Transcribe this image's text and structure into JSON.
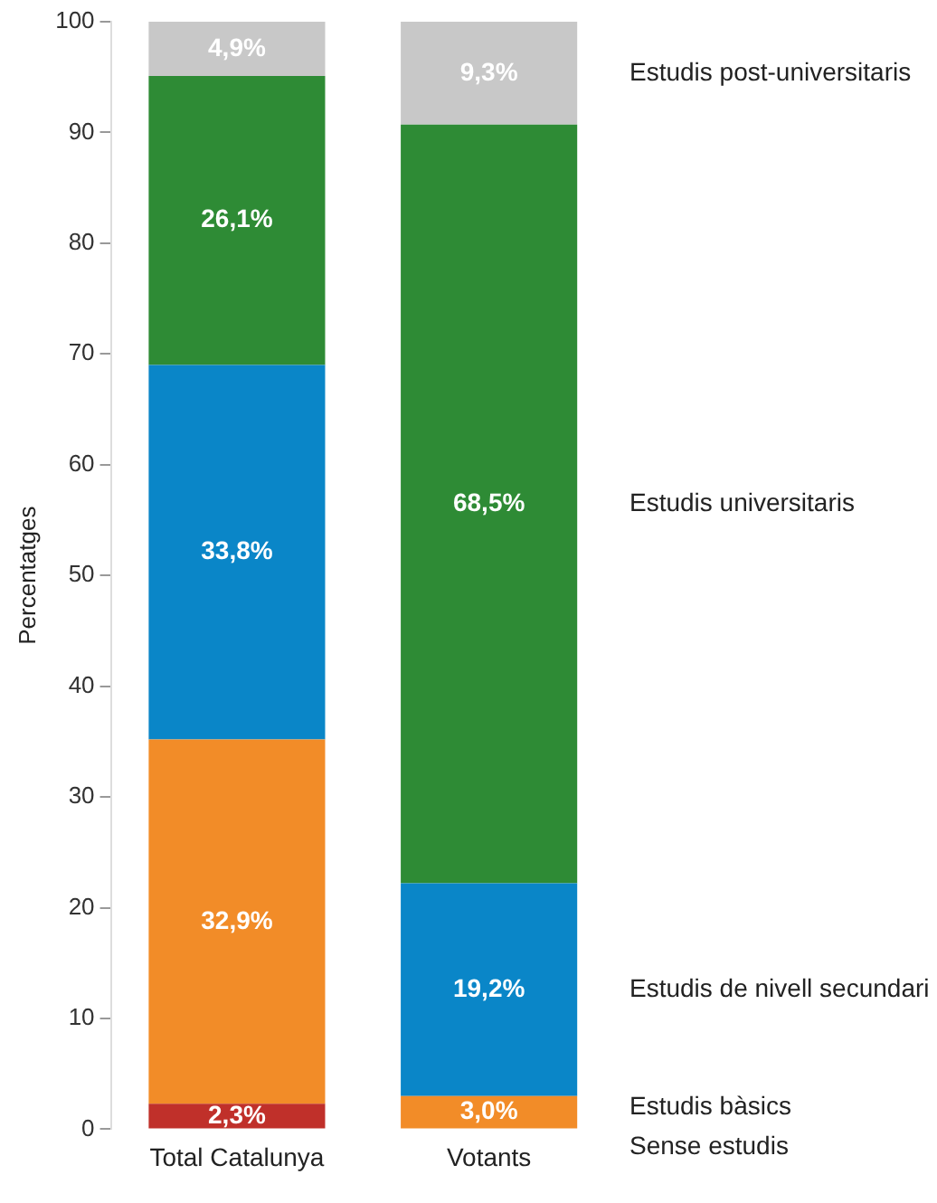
{
  "chart_data": {
    "type": "bar",
    "stacked": true,
    "ylabel": "Percentatges",
    "categories": [
      "Total Catalunya",
      "Votants"
    ],
    "ylim": [
      0,
      100
    ],
    "yticks": [
      0,
      10,
      20,
      30,
      40,
      50,
      60,
      70,
      80,
      90,
      100
    ],
    "grid": false,
    "legend": false,
    "series": [
      {
        "name": "Sense estudis",
        "color": "#c0302a",
        "values": [
          2.3,
          null
        ],
        "value_labels": [
          "2,3%",
          null
        ]
      },
      {
        "name": "Estudis bàsics",
        "color": "#f28c28",
        "values": [
          32.9,
          3.0
        ],
        "value_labels": [
          "32,9%",
          "3,0%"
        ]
      },
      {
        "name": "Estudis de nivell secundari",
        "color": "#0a86c8",
        "values": [
          33.8,
          19.2
        ],
        "value_labels": [
          "33,8%",
          "19,2%"
        ]
      },
      {
        "name": "Estudis universitaris",
        "color": "#2e8b35",
        "values": [
          26.1,
          68.5
        ],
        "value_labels": [
          "26,1%",
          "68,5%"
        ]
      },
      {
        "name": "Estudis post-universitaris",
        "color": "#c8c8c8",
        "values": [
          4.9,
          9.3
        ],
        "value_labels": [
          "4,9%",
          "9,3%"
        ]
      }
    ]
  }
}
